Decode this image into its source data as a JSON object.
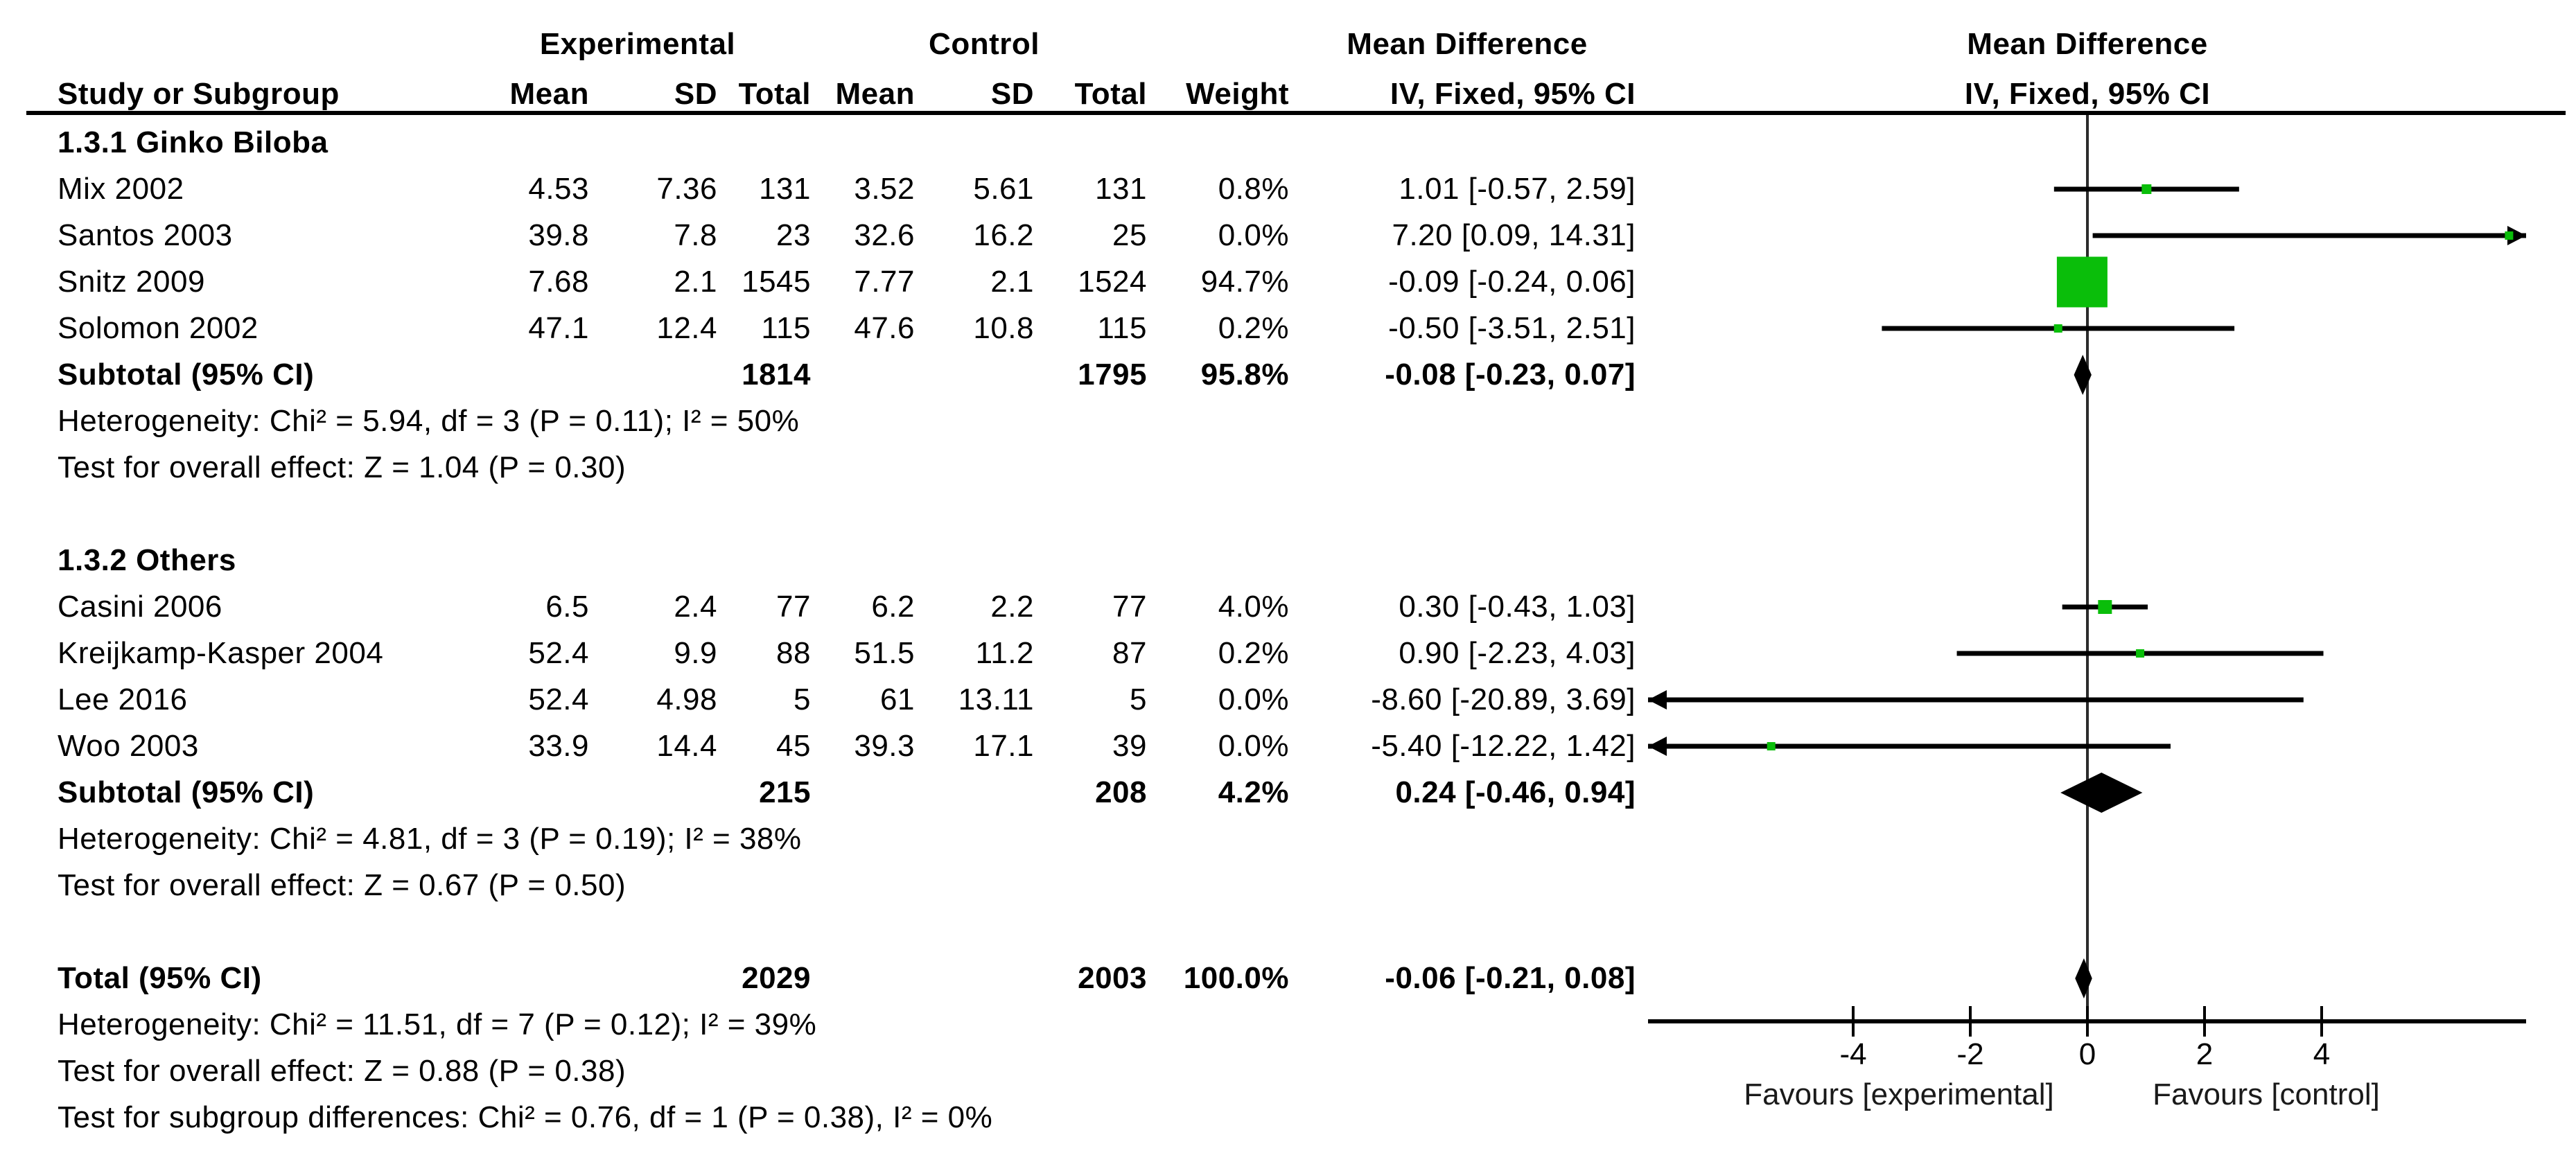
{
  "header": {
    "experimental": "Experimental",
    "control": "Control",
    "study": "Study or Subgroup",
    "mean": "Mean",
    "sd": "SD",
    "total": "Total",
    "weight": "Weight",
    "md": "Mean Difference",
    "iv": "IV, Fixed, 95% CI"
  },
  "colors": {
    "marker": "#0abe0a",
    "ink": "#000000",
    "zero_line": "#2b2b2b"
  },
  "chart_data": {
    "type": "forest",
    "effect_measure": "Mean Difference",
    "model": "IV, Fixed, 95% CI",
    "axis": {
      "xmin": -7.5,
      "xmax": 7.5,
      "ticks": [
        "-4",
        "-2",
        "0",
        "2",
        "4"
      ],
      "tick_values": [
        -4,
        -2,
        0,
        2,
        4
      ],
      "favours_left": "Favours [experimental]",
      "favours_right": "Favours [control]"
    },
    "groups": [
      {
        "label": "1.3.1 Ginko Biloba",
        "studies": [
          {
            "name": "Mix 2002",
            "mean": "4.53",
            "sd": "7.36",
            "total": "131",
            "cmean": "3.52",
            "csd": "5.61",
            "ctotal": "131",
            "weight": "0.8%",
            "ci_text": "1.01 [-0.57, 2.59]",
            "est": 1.01,
            "lo": -0.57,
            "hi": 2.59,
            "msize": 14
          },
          {
            "name": "Santos 2003",
            "mean": "39.8",
            "sd": "7.8",
            "total": "23",
            "cmean": "32.6",
            "csd": "16.2",
            "ctotal": "25",
            "weight": "0.0%",
            "ci_text": "7.20 [0.09, 14.31]",
            "est": 7.2,
            "lo": 0.09,
            "hi": 14.31,
            "msize": 12
          },
          {
            "name": "Snitz 2009",
            "mean": "7.68",
            "sd": "2.1",
            "total": "1545",
            "cmean": "7.77",
            "csd": "2.1",
            "ctotal": "1524",
            "weight": "94.7%",
            "ci_text": "-0.09 [-0.24, 0.06]",
            "est": -0.09,
            "lo": -0.24,
            "hi": 0.06,
            "msize": 73
          },
          {
            "name": "Solomon 2002",
            "mean": "47.1",
            "sd": "12.4",
            "total": "115",
            "cmean": "47.6",
            "csd": "10.8",
            "ctotal": "115",
            "weight": "0.2%",
            "ci_text": "-0.50 [-3.51, 2.51]",
            "est": -0.5,
            "lo": -3.51,
            "hi": 2.51,
            "msize": 12
          }
        ],
        "subtotal": {
          "label": "Subtotal (95% CI)",
          "total": "1814",
          "ctotal": "1795",
          "weight": "95.8%",
          "ci_text": "-0.08 [-0.23, 0.07]",
          "est": -0.08,
          "lo": -0.23,
          "hi": 0.07
        },
        "heterogeneity": "Heterogeneity: Chi² = 5.94, df = 3 (P = 0.11); I² = 50%",
        "overall_effect": "Test for overall effect: Z = 1.04 (P = 0.30)"
      },
      {
        "label": "1.3.2 Others",
        "studies": [
          {
            "name": "Casini 2006",
            "mean": "6.5",
            "sd": "2.4",
            "total": "77",
            "cmean": "6.2",
            "csd": "2.2",
            "ctotal": "77",
            "weight": "4.0%",
            "ci_text": "0.30 [-0.43, 1.03]",
            "est": 0.3,
            "lo": -0.43,
            "hi": 1.03,
            "msize": 20
          },
          {
            "name": "Kreijkamp-Kasper 2004",
            "mean": "52.4",
            "sd": "9.9",
            "total": "88",
            "cmean": "51.5",
            "csd": "11.2",
            "ctotal": "87",
            "weight": "0.2%",
            "ci_text": "0.90 [-2.23, 4.03]",
            "est": 0.9,
            "lo": -2.23,
            "hi": 4.03,
            "msize": 12
          },
          {
            "name": "Lee 2016",
            "mean": "52.4",
            "sd": "4.98",
            "total": "5",
            "cmean": "61",
            "csd": "13.11",
            "ctotal": "5",
            "weight": "0.0%",
            "ci_text": "-8.60 [-20.89, 3.69]",
            "est": -8.6,
            "lo": -20.89,
            "hi": 3.69,
            "msize": 12
          },
          {
            "name": "Woo 2003",
            "mean": "33.9",
            "sd": "14.4",
            "total": "45",
            "cmean": "39.3",
            "csd": "17.1",
            "ctotal": "39",
            "weight": "0.0%",
            "ci_text": "-5.40 [-12.22, 1.42]",
            "est": -5.4,
            "lo": -12.22,
            "hi": 1.42,
            "msize": 12
          }
        ],
        "subtotal": {
          "label": "Subtotal (95% CI)",
          "total": "215",
          "ctotal": "208",
          "weight": "4.2%",
          "ci_text": "0.24 [-0.46, 0.94]",
          "est": 0.24,
          "lo": -0.46,
          "hi": 0.94
        },
        "heterogeneity": "Heterogeneity: Chi² = 4.81, df = 3 (P = 0.19); I² = 38%",
        "overall_effect": "Test for overall effect: Z = 0.67 (P = 0.50)"
      }
    ],
    "total": {
      "label": "Total (95% CI)",
      "total": "2029",
      "ctotal": "2003",
      "weight": "100.0%",
      "ci_text": "-0.06 [-0.21, 0.08]",
      "est": -0.06,
      "lo": -0.21,
      "hi": 0.08
    },
    "total_stats": [
      "Heterogeneity: Chi² = 11.51, df = 7 (P = 0.12); I² = 39%",
      "Test for overall effect: Z = 0.88 (P = 0.38)",
      "Test for subgroup differences: Chi² = 0.76, df = 1 (P = 0.38), I² = 0%"
    ]
  }
}
